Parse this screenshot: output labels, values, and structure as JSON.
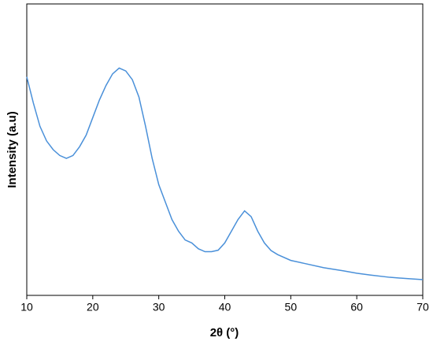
{
  "chart_data": {
    "type": "line",
    "x_label": "2θ (°)",
    "y_label": "Intensity (a.u)",
    "xlim": [
      10,
      70
    ],
    "xticks": [
      10,
      20,
      30,
      40,
      50,
      60,
      70
    ],
    "ylim": [
      0,
      100
    ],
    "series": [
      {
        "color": "#4a90d9",
        "x": [
          10,
          11,
          12,
          13,
          14,
          15,
          16,
          17,
          18,
          19,
          20,
          21,
          22,
          23,
          24,
          25,
          26,
          27,
          28,
          29,
          30,
          31,
          32,
          33,
          34,
          35,
          36,
          37,
          38,
          39,
          40,
          41,
          42,
          43,
          44,
          45,
          46,
          47,
          48,
          50,
          52,
          55,
          58,
          60,
          62,
          65,
          68,
          70
        ],
        "values": [
          75,
          66,
          58,
          53,
          50,
          48,
          47,
          48,
          51,
          55,
          61,
          67,
          72,
          76,
          78,
          77,
          74,
          68,
          58,
          47,
          38,
          32,
          26,
          22,
          19,
          18,
          16,
          15,
          15,
          15.5,
          18,
          22,
          26,
          29,
          27,
          22,
          18,
          15.4,
          14,
          12,
          11,
          9.5,
          8.4,
          7.6,
          7,
          6.2,
          5.7,
          5.4
        ]
      }
    ]
  }
}
